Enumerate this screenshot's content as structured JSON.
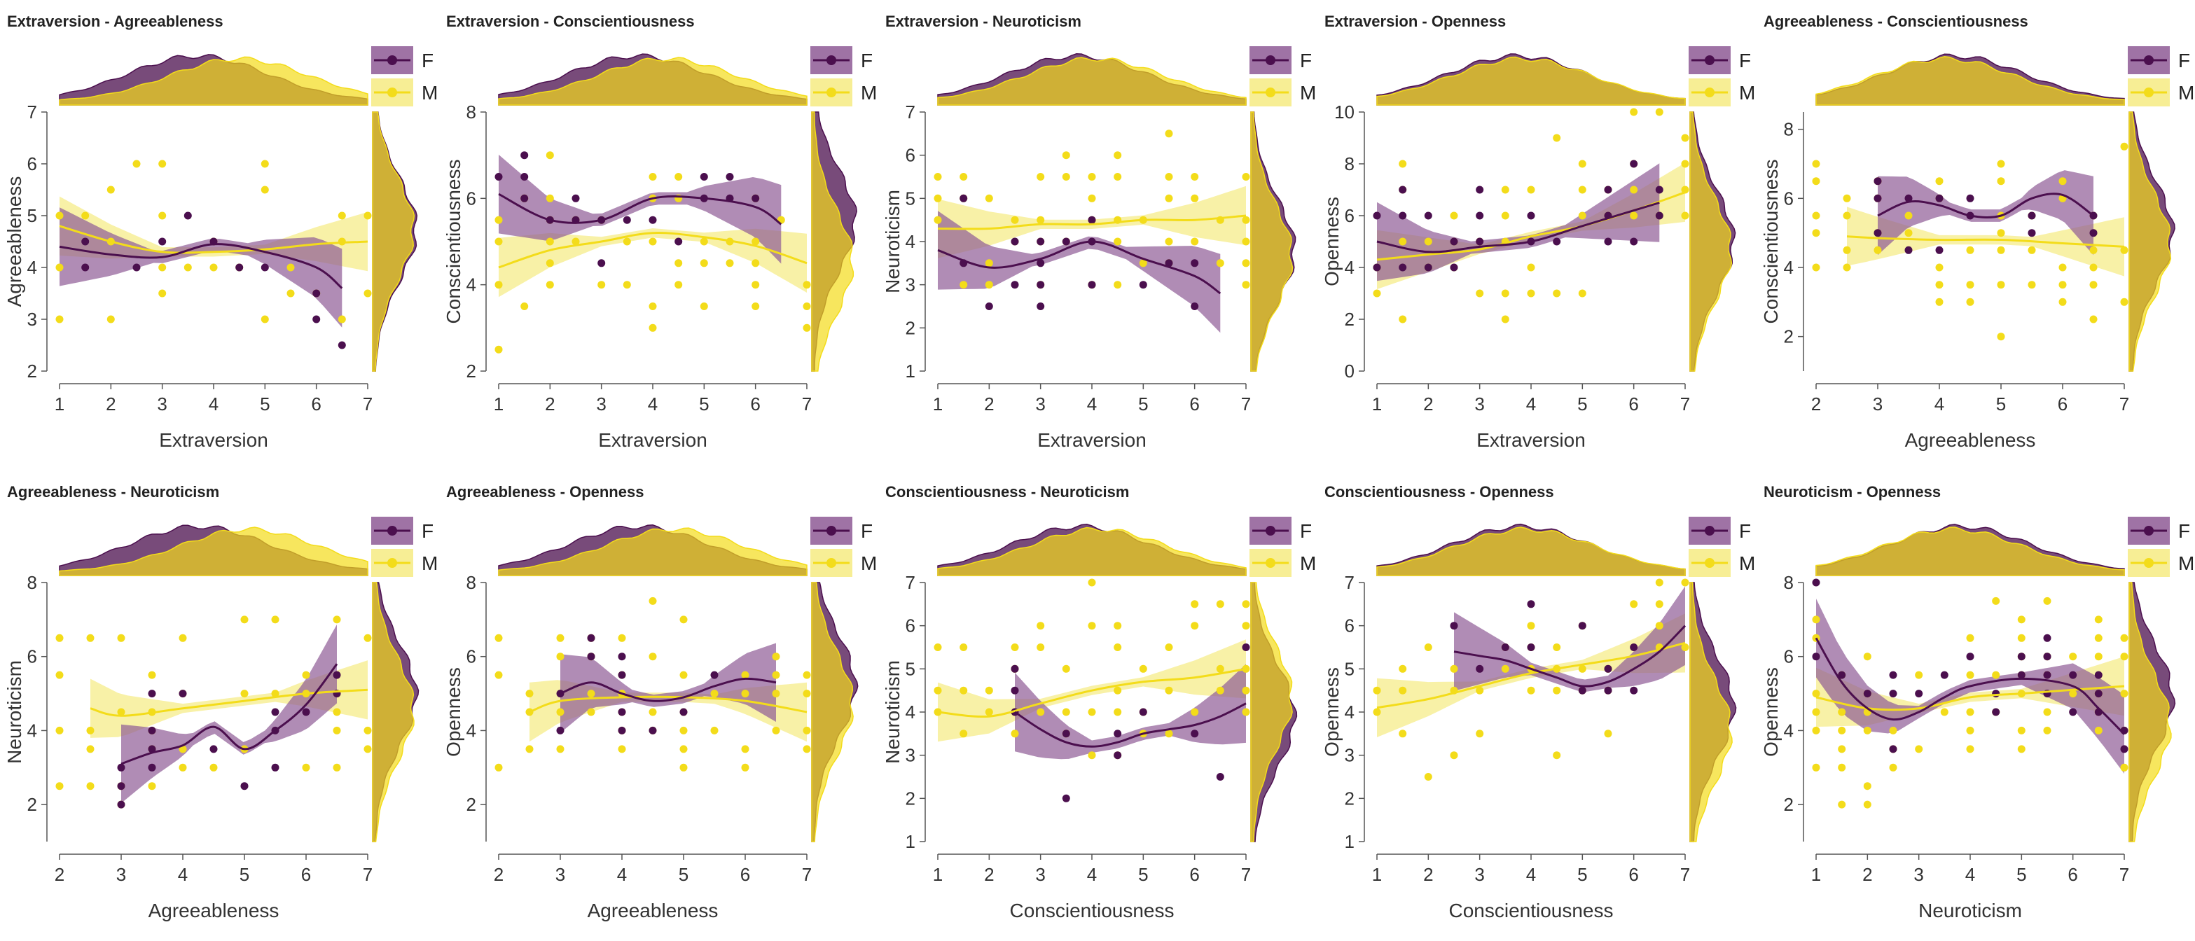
{
  "colors": {
    "F": "#4b0f4e",
    "M": "#f3dc1a",
    "F_band": "#8e5b95",
    "M_band": "#f6ec8a",
    "overlap": "#c4a34a"
  },
  "legend": {
    "F": "F",
    "M": "M"
  },
  "chart_data": [
    {
      "type": "scatter",
      "title": "Extraversion - Agreeableness",
      "xlabel": "Extraversion",
      "ylabel": "Agreeableness",
      "xlim": [
        1,
        7
      ],
      "ylim": [
        2,
        7
      ],
      "xticks": [
        1,
        2,
        3,
        4,
        5,
        6,
        7
      ],
      "yticks": [
        2,
        3,
        4,
        5,
        6,
        7
      ],
      "fit_F": [
        [
          1,
          4.4
        ],
        [
          2,
          4.25
        ],
        [
          3,
          4.2
        ],
        [
          4,
          4.45
        ],
        [
          5,
          4.3
        ],
        [
          6,
          4.0
        ],
        [
          6.5,
          3.6
        ]
      ],
      "fit_M": [
        [
          1,
          4.8
        ],
        [
          2,
          4.5
        ],
        [
          3,
          4.3
        ],
        [
          4,
          4.3
        ],
        [
          5,
          4.35
        ],
        [
          6,
          4.45
        ],
        [
          7,
          4.5
        ]
      ]
    },
    {
      "type": "scatter",
      "title": "Extraversion - Conscientiousness",
      "xlabel": "Extraversion",
      "ylabel": "Conscientiousness",
      "xlim": [
        1,
        7
      ],
      "ylim": [
        2,
        8
      ],
      "xticks": [
        1,
        2,
        3,
        4,
        5,
        6,
        7
      ],
      "yticks": [
        2,
        4,
        6,
        8
      ],
      "fit_F": [
        [
          1,
          6.1
        ],
        [
          2,
          5.5
        ],
        [
          3,
          5.5
        ],
        [
          4,
          6.0
        ],
        [
          5,
          6.0
        ],
        [
          6,
          5.8
        ],
        [
          6.5,
          5.4
        ]
      ],
      "fit_M": [
        [
          1,
          4.4
        ],
        [
          2,
          4.8
        ],
        [
          3,
          5.0
        ],
        [
          4,
          5.2
        ],
        [
          5,
          5.1
        ],
        [
          6,
          4.9
        ],
        [
          7,
          4.5
        ]
      ]
    },
    {
      "type": "scatter",
      "title": "Extraversion - Neuroticism",
      "xlabel": "Extraversion",
      "ylabel": "Neuroticism",
      "xlim": [
        1,
        7
      ],
      "ylim": [
        1,
        7
      ],
      "xticks": [
        1,
        2,
        3,
        4,
        5,
        6,
        7
      ],
      "yticks": [
        1,
        2,
        3,
        4,
        5,
        6,
        7
      ],
      "fit_F": [
        [
          1,
          3.8
        ],
        [
          2,
          3.4
        ],
        [
          3,
          3.6
        ],
        [
          4,
          4.0
        ],
        [
          5,
          3.6
        ],
        [
          6,
          3.2
        ],
        [
          6.5,
          2.8
        ]
      ],
      "fit_M": [
        [
          1,
          4.3
        ],
        [
          2,
          4.3
        ],
        [
          3,
          4.4
        ],
        [
          4,
          4.4
        ],
        [
          5,
          4.5
        ],
        [
          6,
          4.5
        ],
        [
          7,
          4.6
        ]
      ]
    },
    {
      "type": "scatter",
      "title": "Extraversion - Openness",
      "xlabel": "Extraversion",
      "ylabel": "Openness",
      "xlim": [
        1,
        7
      ],
      "ylim": [
        0,
        10
      ],
      "xticks": [
        1,
        2,
        3,
        4,
        5,
        6,
        7
      ],
      "yticks": [
        0,
        2,
        4,
        6,
        8,
        10
      ],
      "fit_F": [
        [
          1,
          5.0
        ],
        [
          2,
          4.6
        ],
        [
          3,
          4.8
        ],
        [
          4,
          5.0
        ],
        [
          5,
          5.6
        ],
        [
          6,
          6.2
        ],
        [
          6.5,
          6.5
        ]
      ],
      "fit_M": [
        [
          1,
          4.3
        ],
        [
          2,
          4.5
        ],
        [
          3,
          4.7
        ],
        [
          4,
          5.2
        ],
        [
          5,
          5.6
        ],
        [
          6,
          6.2
        ],
        [
          7,
          6.9
        ]
      ]
    },
    {
      "type": "scatter",
      "title": "Agreeableness - Conscientiousness",
      "xlabel": "Agreeableness",
      "ylabel": "Conscientiousness",
      "xlim": [
        2,
        7
      ],
      "ylim": [
        1,
        8.5
      ],
      "xticks": [
        2,
        3,
        4,
        5,
        6,
        7
      ],
      "yticks": [
        2,
        4,
        6,
        8
      ],
      "fit_F": [
        [
          3,
          5.5
        ],
        [
          3.5,
          5.9
        ],
        [
          4,
          5.8
        ],
        [
          4.5,
          5.5
        ],
        [
          5,
          5.5
        ],
        [
          5.5,
          6.0
        ],
        [
          6,
          6.1
        ],
        [
          6.5,
          5.5
        ]
      ],
      "fit_M": [
        [
          2.5,
          4.9
        ],
        [
          3,
          4.85
        ],
        [
          4,
          4.8
        ],
        [
          5,
          4.8
        ],
        [
          6,
          4.7
        ],
        [
          7,
          4.6
        ]
      ]
    },
    {
      "type": "scatter",
      "title": "Agreeableness - Neuroticism",
      "xlabel": "Agreeableness",
      "ylabel": "Neuroticism",
      "xlim": [
        2,
        7
      ],
      "ylim": [
        1,
        8
      ],
      "xticks": [
        2,
        3,
        4,
        5,
        6,
        7
      ],
      "yticks": [
        2,
        4,
        6,
        8
      ],
      "fit_F": [
        [
          3,
          3.1
        ],
        [
          3.5,
          3.4
        ],
        [
          4,
          3.6
        ],
        [
          4.5,
          4.1
        ],
        [
          5,
          3.5
        ],
        [
          5.5,
          4.0
        ],
        [
          6,
          4.7
        ],
        [
          6.5,
          5.8
        ]
      ],
      "fit_M": [
        [
          2.5,
          4.6
        ],
        [
          3,
          4.4
        ],
        [
          4,
          4.6
        ],
        [
          5,
          4.8
        ],
        [
          6,
          5.0
        ],
        [
          7,
          5.1
        ]
      ]
    },
    {
      "type": "scatter",
      "title": "Agreeableness - Openness",
      "xlabel": "Agreeableness",
      "ylabel": "Openness",
      "xlim": [
        2,
        7
      ],
      "ylim": [
        1,
        8
      ],
      "xticks": [
        2,
        3,
        4,
        5,
        6,
        7
      ],
      "yticks": [
        2,
        4,
        6,
        8
      ],
      "fit_F": [
        [
          3,
          5.0
        ],
        [
          3.5,
          5.3
        ],
        [
          4,
          5.0
        ],
        [
          4.5,
          4.8
        ],
        [
          5,
          4.9
        ],
        [
          5.5,
          5.2
        ],
        [
          6,
          5.4
        ],
        [
          6.5,
          5.3
        ]
      ],
      "fit_M": [
        [
          2.5,
          4.5
        ],
        [
          3,
          4.8
        ],
        [
          4,
          4.9
        ],
        [
          5,
          4.9
        ],
        [
          6,
          4.8
        ],
        [
          7,
          4.5
        ]
      ]
    },
    {
      "type": "scatter",
      "title": "Conscientiousness - Neuroticism",
      "xlabel": "Conscientiousness",
      "ylabel": "Neuroticism",
      "xlim": [
        1,
        7
      ],
      "ylim": [
        1,
        7
      ],
      "xticks": [
        1,
        2,
        3,
        4,
        5,
        6,
        7
      ],
      "yticks": [
        1,
        2,
        3,
        4,
        5,
        6,
        7
      ],
      "fit_F": [
        [
          2.5,
          4.0
        ],
        [
          3,
          3.6
        ],
        [
          3.5,
          3.3
        ],
        [
          4,
          3.2
        ],
        [
          4.5,
          3.3
        ],
        [
          5,
          3.5
        ],
        [
          5.5,
          3.6
        ],
        [
          6,
          3.7
        ],
        [
          6.5,
          3.9
        ],
        [
          7,
          4.2
        ]
      ],
      "fit_M": [
        [
          1,
          4.0
        ],
        [
          2,
          3.9
        ],
        [
          3,
          4.2
        ],
        [
          4,
          4.5
        ],
        [
          5,
          4.7
        ],
        [
          6,
          4.8
        ],
        [
          7,
          5.0
        ]
      ]
    },
    {
      "type": "scatter",
      "title": "Conscientiousness - Openness",
      "xlabel": "Conscientiousness",
      "ylabel": "Openness",
      "xlim": [
        1,
        7
      ],
      "ylim": [
        1,
        7
      ],
      "xticks": [
        1,
        2,
        3,
        4,
        5,
        6,
        7
      ],
      "yticks": [
        1,
        2,
        3,
        4,
        5,
        6,
        7
      ],
      "fit_F": [
        [
          2.5,
          5.4
        ],
        [
          3,
          5.3
        ],
        [
          3.5,
          5.2
        ],
        [
          4,
          5.0
        ],
        [
          4.5,
          4.8
        ],
        [
          5,
          4.6
        ],
        [
          5.5,
          4.7
        ],
        [
          6,
          5.0
        ],
        [
          6.5,
          5.4
        ],
        [
          7,
          6.0
        ]
      ],
      "fit_M": [
        [
          1,
          4.1
        ],
        [
          2,
          4.3
        ],
        [
          3,
          4.6
        ],
        [
          4,
          4.9
        ],
        [
          5,
          5.1
        ],
        [
          6,
          5.3
        ],
        [
          7,
          5.6
        ]
      ]
    },
    {
      "type": "scatter",
      "title": "Neuroticism - Openness",
      "xlabel": "Neuroticism",
      "ylabel": "Openness",
      "xlim": [
        1,
        7
      ],
      "ylim": [
        1,
        8
      ],
      "xticks": [
        1,
        2,
        3,
        4,
        5,
        6,
        7
      ],
      "yticks": [
        2,
        4,
        6,
        8
      ],
      "fit_F": [
        [
          1,
          6.5
        ],
        [
          1.5,
          5.3
        ],
        [
          2,
          4.6
        ],
        [
          2.5,
          4.3
        ],
        [
          3,
          4.5
        ],
        [
          3.5,
          4.9
        ],
        [
          4,
          5.2
        ],
        [
          5,
          5.4
        ],
        [
          6,
          5.2
        ],
        [
          6.5,
          4.6
        ],
        [
          7,
          3.9
        ]
      ],
      "fit_M": [
        [
          1,
          4.9
        ],
        [
          2,
          4.6
        ],
        [
          3,
          4.6
        ],
        [
          4,
          4.9
        ],
        [
          5,
          5.0
        ],
        [
          6,
          5.1
        ],
        [
          7,
          5.2
        ]
      ]
    }
  ]
}
